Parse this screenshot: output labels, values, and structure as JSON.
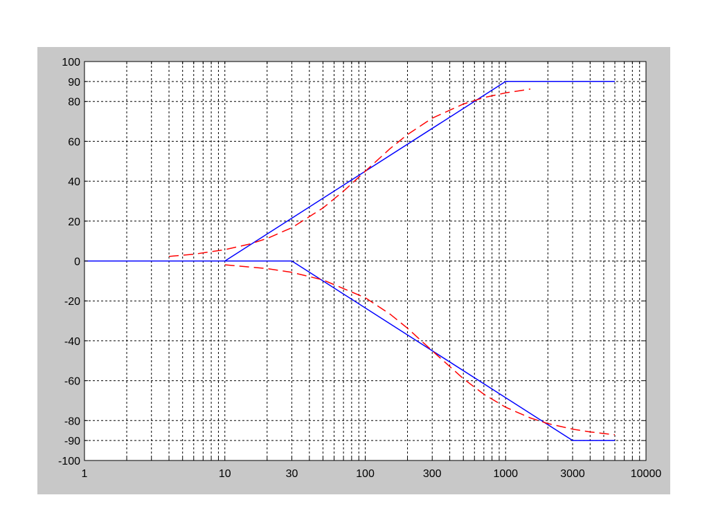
{
  "chart_data": {
    "type": "line",
    "title": "",
    "xlabel": "",
    "ylabel": "",
    "x_scale": "log",
    "xlim": [
      1,
      10000
    ],
    "ylim": [
      -100,
      100
    ],
    "grid": true,
    "x_tick_labels": [
      {
        "value": 1,
        "label": "1"
      },
      {
        "value": 10,
        "label": "10"
      },
      {
        "value": 30,
        "label": "30"
      },
      {
        "value": 100,
        "label": "100"
      },
      {
        "value": 300,
        "label": "300"
      },
      {
        "value": 1000,
        "label": "1000"
      },
      {
        "value": 3000,
        "label": "3000"
      },
      {
        "value": 10000,
        "label": "10000"
      }
    ],
    "y_ticks": [
      {
        "value": 100,
        "label": "100"
      },
      {
        "value": 90,
        "label": "90"
      },
      {
        "value": 80,
        "label": "80"
      },
      {
        "value": 60,
        "label": "60"
      },
      {
        "value": 40,
        "label": "40"
      },
      {
        "value": 20,
        "label": "20"
      },
      {
        "value": 0,
        "label": "0"
      },
      {
        "value": -20,
        "label": "-20"
      },
      {
        "value": -40,
        "label": "-40"
      },
      {
        "value": -60,
        "label": "-60"
      },
      {
        "value": -80,
        "label": "-80"
      },
      {
        "value": -90,
        "label": "-90"
      },
      {
        "value": -100,
        "label": "-100"
      }
    ],
    "series": [
      {
        "color": "#0000ff",
        "style": "solid",
        "x": [
          1,
          10,
          1000,
          6000
        ],
        "y": [
          0,
          0,
          90,
          90
        ]
      },
      {
        "color": "#0000ff",
        "style": "solid",
        "x": [
          10,
          30,
          3000,
          6000
        ],
        "y": [
          0,
          0,
          -90,
          -90
        ]
      },
      {
        "color": "#ff0000",
        "style": "dashed",
        "x": [
          4,
          6,
          10,
          15,
          20,
          30,
          50,
          70,
          100,
          150,
          200,
          300,
          500,
          700,
          1000,
          1500
        ],
        "y": [
          2.3,
          3.4,
          5.7,
          8.5,
          11.3,
          16.7,
          26.6,
          35,
          45,
          56.3,
          63.4,
          71.6,
          78.7,
          81.9,
          84.3,
          86.2
        ]
      },
      {
        "color": "#ff0000",
        "style": "dashed",
        "x": [
          10,
          20,
          30,
          50,
          100,
          150,
          200,
          300,
          500,
          700,
          1000,
          1500,
          2000,
          3000,
          4000,
          6000
        ],
        "y": [
          -1.9,
          -3.8,
          -5.7,
          -9.5,
          -18.4,
          -26.6,
          -33.7,
          -45,
          -59,
          -66.8,
          -73.3,
          -78.7,
          -81.5,
          -84.3,
          -85.7,
          -87.1
        ]
      }
    ]
  }
}
